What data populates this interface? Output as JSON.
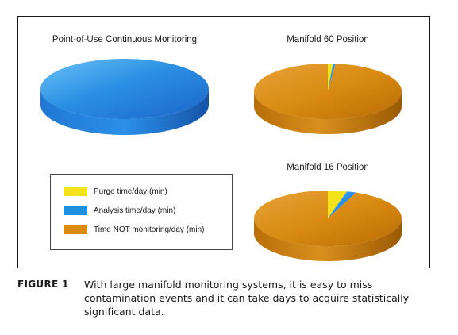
{
  "chart_data": [
    {
      "type": "pie",
      "title": "Point-of-Use Continuous Monitoring",
      "categories": [
        "Purge time/day (min)",
        "Analysis time/day (min)",
        "Time NOT monitoring/day (min)"
      ],
      "values": [
        0,
        1440,
        0
      ]
    },
    {
      "type": "pie",
      "title": "Manifold 60 Position",
      "categories": [
        "Purge time/day (min)",
        "Analysis time/day (min)",
        "Time NOT monitoring/day (min)"
      ],
      "values": [
        16,
        8,
        1416
      ]
    },
    {
      "type": "pie",
      "title": "Manifold 16 Position",
      "categories": [
        "Purge time/day (min)",
        "Analysis time/day (min)",
        "Time NOT monitoring/day (min)"
      ],
      "values": [
        60,
        30,
        1350
      ]
    }
  ],
  "legend": {
    "items": [
      {
        "label": "Purge time/day (min)",
        "color": "#f5e31a"
      },
      {
        "label": "Analysis time/day (min)",
        "color": "#1f8fe0"
      },
      {
        "label": "Time NOT monitoring/day (min)",
        "color": "#d98b12"
      }
    ]
  },
  "caption": {
    "label": "FIGURE 1",
    "text": "With large manifold monitoring systems, it is easy to miss contamination events and it can take days to acquire statistically significant data."
  }
}
